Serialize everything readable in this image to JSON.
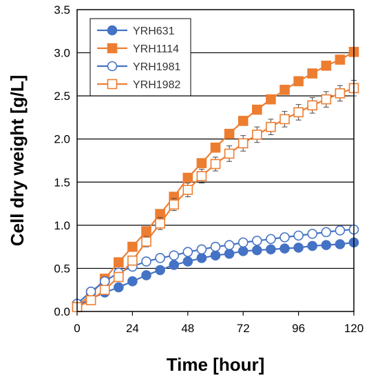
{
  "chart_data": {
    "type": "line",
    "xlabel": "Time [hour]",
    "ylabel": "Cell dry weight [g/L]",
    "xlim": [
      0,
      120
    ],
    "ylim": [
      0,
      3.5
    ],
    "x_ticks": [
      "0",
      "24",
      "48",
      "72",
      "96",
      "120"
    ],
    "y_ticks": [
      "0.0",
      "0.5",
      "1.0",
      "1.5",
      "2.0",
      "2.5",
      "3.0",
      "3.5"
    ],
    "grid": "horizontal",
    "legend_position": "top-left",
    "x": [
      0,
      6,
      12,
      18,
      24,
      30,
      36,
      42,
      48,
      54,
      60,
      66,
      72,
      78,
      84,
      90,
      96,
      102,
      108,
      114,
      120
    ],
    "series": [
      {
        "name": "YRH631",
        "color": "#4472C4",
        "marker": "circle-filled",
        "values": [
          0.06,
          0.15,
          0.22,
          0.28,
          0.35,
          0.42,
          0.48,
          0.54,
          0.58,
          0.62,
          0.65,
          0.67,
          0.7,
          0.71,
          0.72,
          0.73,
          0.74,
          0.76,
          0.77,
          0.78,
          0.8
        ]
      },
      {
        "name": "YRH1114",
        "color": "#ED7D31",
        "marker": "square-filled",
        "values": [
          0.06,
          0.2,
          0.38,
          0.57,
          0.75,
          0.93,
          1.13,
          1.33,
          1.55,
          1.72,
          1.9,
          2.06,
          2.21,
          2.34,
          2.46,
          2.57,
          2.67,
          2.76,
          2.85,
          2.92,
          3.01
        ]
      },
      {
        "name": "YRH1981",
        "color": "#4472C4",
        "marker": "circle-open",
        "values": [
          0.09,
          0.23,
          0.35,
          0.45,
          0.52,
          0.58,
          0.62,
          0.65,
          0.69,
          0.72,
          0.75,
          0.77,
          0.8,
          0.82,
          0.84,
          0.86,
          0.88,
          0.9,
          0.92,
          0.94,
          0.95
        ]
      },
      {
        "name": "YRH1982",
        "color": "#ED7D31",
        "marker": "square-open",
        "values": [
          0.05,
          0.13,
          0.25,
          0.4,
          0.59,
          0.81,
          1.02,
          1.24,
          1.41,
          1.57,
          1.71,
          1.83,
          1.95,
          2.05,
          2.14,
          2.23,
          2.31,
          2.39,
          2.46,
          2.53,
          2.59
        ],
        "errors": [
          0.01,
          0.02,
          0.03,
          0.04,
          0.05,
          0.06,
          0.07,
          0.07,
          0.08,
          0.08,
          0.08,
          0.09,
          0.09,
          0.09,
          0.09,
          0.09,
          0.09,
          0.09,
          0.09,
          0.09,
          0.09
        ]
      }
    ]
  }
}
